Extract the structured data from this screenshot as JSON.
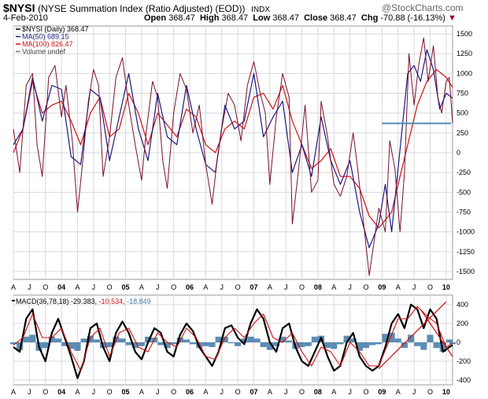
{
  "header": {
    "symbol": "$NYSI",
    "description": "(NYSE Summation Index (Ratio Adjusted) (EOD))",
    "exchange": "INDX",
    "date": "4-Feb-2010",
    "open_label": "Open",
    "open": "368.47",
    "high_label": "High",
    "high": "368.47",
    "low_label": "Low",
    "low": "368.47",
    "close_label": "Close",
    "close": "368.47",
    "chg_label": "Chg",
    "chg": "-70.88 (-16.13%)",
    "brand": "@StockCharts.com",
    "colors": {
      "down": "#cc0000"
    }
  },
  "legend": {
    "nysi": "$NYSI (Daily) 368.47",
    "ma50": "MA(50) 689.15",
    "ma100": "MA(100) 826.47",
    "volume": "Volume undef"
  },
  "macd_legend": {
    "name": "MACD(36,78,18)",
    "macd": "-29.383,",
    "signal": "-10.534,",
    "hist": "-18.849"
  },
  "chart_data": [
    {
      "type": "line",
      "title": "$NYSI (Daily)",
      "ylim": [
        -1600,
        1600
      ],
      "y_ticks": [
        -1500,
        -1250,
        -1000,
        -750,
        -500,
        -250,
        0,
        250,
        500,
        750,
        1000,
        1250,
        1500
      ],
      "x_tick_labels": [
        "A",
        "J",
        "O",
        "04",
        "A",
        "J",
        "O",
        "05",
        "A",
        "J",
        "O",
        "06",
        "A",
        "J",
        "O",
        "07",
        "A",
        "J",
        "O",
        "08",
        "A",
        "J",
        "O",
        "09",
        "A",
        "J",
        "O",
        "10"
      ],
      "x_tick_bold": [
        "04",
        "05",
        "06",
        "07",
        "08",
        "09",
        "10"
      ],
      "x_range": [
        2003.25,
        2010.1
      ],
      "colors": {
        "price": "#7a0f2e",
        "ma50": "#1a1a80",
        "ma100": "#cc1111",
        "hline": "#4a8fb3",
        "grid": "#d8d8d8"
      },
      "horizontal_line": 370,
      "series": [
        {
          "name": "$NYSI",
          "x": [
            2003.25,
            2003.35,
            2003.45,
            2003.55,
            2003.62,
            2003.7,
            2003.8,
            2003.9,
            2004.0,
            2004.07,
            2004.17,
            2004.25,
            2004.32,
            2004.42,
            2004.5,
            2004.58,
            2004.65,
            2004.75,
            2004.85,
            2004.95,
            2005.05,
            2005.15,
            2005.25,
            2005.32,
            2005.42,
            2005.5,
            2005.58,
            2005.65,
            2005.75,
            2005.85,
            2005.95,
            2006.05,
            2006.15,
            2006.25,
            2006.35,
            2006.42,
            2006.5,
            2006.6,
            2006.7,
            2006.8,
            2006.9,
            2007.0,
            2007.1,
            2007.18,
            2007.25,
            2007.35,
            2007.45,
            2007.55,
            2007.6,
            2007.7,
            2007.8,
            2007.9,
            2008.0,
            2008.05,
            2008.15,
            2008.25,
            2008.35,
            2008.45,
            2008.55,
            2008.62,
            2008.7,
            2008.8,
            2008.88,
            2008.95,
            2009.05,
            2009.12,
            2009.2,
            2009.28,
            2009.35,
            2009.42,
            2009.5,
            2009.57,
            2009.65,
            2009.72,
            2009.8,
            2009.87,
            2009.93,
            2010.0,
            2010.05,
            2010.1
          ],
          "values": [
            300,
            -250,
            850,
            1000,
            100,
            -300,
            950,
            1100,
            450,
            850,
            150,
            -750,
            -200,
            650,
            1050,
            850,
            -300,
            200,
            950,
            1200,
            600,
            100,
            -350,
            250,
            900,
            700,
            -100,
            -450,
            500,
            1000,
            800,
            250,
            600,
            -150,
            -650,
            -150,
            300,
            750,
            600,
            150,
            850,
            1150,
            750,
            500,
            -400,
            450,
            1000,
            700,
            -900,
            -200,
            600,
            -500,
            -350,
            650,
            200,
            -400,
            -550,
            -300,
            250,
            -200,
            -800,
            -1550,
            -1100,
            -700,
            -1000,
            150,
            -200,
            -1000,
            -250,
            1250,
            600,
            1100,
            1450,
            900,
            1350,
            700,
            500,
            900,
            950,
            368
          ]
        },
        {
          "name": "MA(50)",
          "x": [
            2003.25,
            2003.4,
            2003.55,
            2003.7,
            2003.85,
            2004.0,
            2004.15,
            2004.3,
            2004.45,
            2004.6,
            2004.75,
            2004.9,
            2005.05,
            2005.2,
            2005.35,
            2005.5,
            2005.65,
            2005.8,
            2005.95,
            2006.1,
            2006.25,
            2006.4,
            2006.55,
            2006.7,
            2006.85,
            2007.0,
            2007.15,
            2007.3,
            2007.45,
            2007.6,
            2007.75,
            2007.9,
            2008.05,
            2008.2,
            2008.35,
            2008.5,
            2008.65,
            2008.8,
            2008.95,
            2009.05,
            2009.15,
            2009.25,
            2009.4,
            2009.5,
            2009.6,
            2009.7,
            2009.8,
            2009.9,
            2010.0,
            2010.1
          ],
          "values": [
            100,
            300,
            950,
            400,
            850,
            800,
            -50,
            -150,
            800,
            700,
            -100,
            450,
            1000,
            300,
            -100,
            750,
            200,
            100,
            850,
            300,
            -150,
            -250,
            600,
            300,
            400,
            1000,
            200,
            450,
            650,
            -250,
            100,
            -300,
            450,
            -100,
            -400,
            -100,
            -750,
            -1200,
            -900,
            -400,
            -1000,
            -200,
            1000,
            1100,
            900,
            1300,
            1050,
            550,
            750,
            689
          ]
        },
        {
          "name": "MA(100)",
          "x": [
            2003.25,
            2003.4,
            2003.55,
            2003.7,
            2003.85,
            2004.0,
            2004.15,
            2004.3,
            2004.45,
            2004.6,
            2004.75,
            2004.9,
            2005.05,
            2005.2,
            2005.35,
            2005.5,
            2005.65,
            2005.8,
            2005.95,
            2006.1,
            2006.25,
            2006.4,
            2006.55,
            2006.7,
            2006.85,
            2007.0,
            2007.15,
            2007.3,
            2007.45,
            2007.6,
            2007.75,
            2007.9,
            2008.05,
            2008.2,
            2008.35,
            2008.5,
            2008.65,
            2008.8,
            2008.95,
            2009.05,
            2009.15,
            2009.25,
            2009.4,
            2009.55,
            2009.7,
            2009.85,
            2010.0,
            2010.1
          ],
          "values": [
            0,
            300,
            900,
            500,
            600,
            650,
            400,
            100,
            500,
            700,
            200,
            300,
            750,
            500,
            100,
            500,
            350,
            200,
            550,
            450,
            100,
            0,
            300,
            400,
            300,
            700,
            750,
            550,
            850,
            400,
            100,
            -200,
            -100,
            50,
            -300,
            -300,
            -450,
            -800,
            -950,
            -850,
            -750,
            -400,
            100,
            600,
            900,
            1050,
            950,
            826
          ]
        }
      ]
    },
    {
      "type": "line",
      "title": "MACD(36,78,18)",
      "ylim": [
        -450,
        500
      ],
      "y_ticks": [
        -400,
        -200,
        0,
        200,
        400
      ],
      "x_range": [
        2003.25,
        2010.1
      ],
      "colors": {
        "macd": "#000000",
        "signal": "#cc1111",
        "hist": "#3f78a8",
        "trend": "#cc1111"
      },
      "trend_lines": [
        {
          "x": [
            2008.95,
            2010.0
          ],
          "values": [
            -280,
            430
          ]
        },
        {
          "x": [
            2009.6,
            2010.1
          ],
          "values": [
            350,
            -150
          ]
        }
      ],
      "series": [
        {
          "name": "MACD",
          "x": [
            2003.25,
            2003.35,
            2003.45,
            2003.55,
            2003.65,
            2003.75,
            2003.85,
            2003.95,
            2004.05,
            2004.15,
            2004.25,
            2004.35,
            2004.45,
            2004.55,
            2004.65,
            2004.75,
            2004.85,
            2004.95,
            2005.05,
            2005.15,
            2005.25,
            2005.35,
            2005.45,
            2005.55,
            2005.65,
            2005.75,
            2005.85,
            2005.95,
            2006.05,
            2006.15,
            2006.25,
            2006.35,
            2006.45,
            2006.55,
            2006.65,
            2006.75,
            2006.85,
            2006.95,
            2007.05,
            2007.15,
            2007.25,
            2007.35,
            2007.45,
            2007.55,
            2007.65,
            2007.75,
            2007.85,
            2007.95,
            2008.05,
            2008.15,
            2008.25,
            2008.35,
            2008.45,
            2008.55,
            2008.65,
            2008.75,
            2008.85,
            2008.95,
            2009.05,
            2009.15,
            2009.25,
            2009.35,
            2009.45,
            2009.55,
            2009.65,
            2009.75,
            2009.85,
            2009.95,
            2010.05,
            2010.1
          ],
          "values": [
            -50,
            -100,
            250,
            350,
            -50,
            -200,
            100,
            250,
            50,
            -150,
            -380,
            -200,
            150,
            200,
            -50,
            -200,
            100,
            220,
            100,
            -100,
            -180,
            0,
            150,
            100,
            -100,
            -150,
            80,
            200,
            120,
            -50,
            -150,
            -250,
            -100,
            150,
            180,
            50,
            -20,
            200,
            350,
            250,
            0,
            -100,
            150,
            200,
            -50,
            -200,
            -250,
            -100,
            50,
            -150,
            -300,
            -250,
            0,
            100,
            -150,
            -250,
            -300,
            -250,
            -50,
            200,
            300,
            150,
            400,
            350,
            150,
            350,
            250,
            -100,
            -50,
            -30
          ]
        },
        {
          "name": "Signal",
          "x": [
            2003.25,
            2003.4,
            2003.55,
            2003.7,
            2003.85,
            2004.0,
            2004.15,
            2004.3,
            2004.45,
            2004.6,
            2004.75,
            2004.9,
            2005.05,
            2005.2,
            2005.35,
            2005.5,
            2005.65,
            2005.8,
            2005.95,
            2006.1,
            2006.25,
            2006.4,
            2006.55,
            2006.7,
            2006.85,
            2007.0,
            2007.15,
            2007.3,
            2007.45,
            2007.6,
            2007.75,
            2007.9,
            2008.05,
            2008.2,
            2008.35,
            2008.5,
            2008.65,
            2008.8,
            2008.95,
            2009.1,
            2009.25,
            2009.4,
            2009.55,
            2009.7,
            2009.85,
            2010.0,
            2010.1
          ],
          "values": [
            -30,
            50,
            300,
            50,
            50,
            150,
            -100,
            -300,
            50,
            150,
            -150,
            100,
            150,
            -50,
            -100,
            100,
            0,
            -50,
            150,
            50,
            -150,
            -180,
            50,
            150,
            50,
            200,
            300,
            50,
            0,
            100,
            -100,
            -250,
            -50,
            -100,
            -250,
            0,
            -100,
            -250,
            -250,
            0,
            250,
            250,
            380,
            280,
            200,
            -50,
            -10
          ]
        },
        {
          "name": "Histogram",
          "x": [
            2003.25,
            2003.35,
            2003.45,
            2003.55,
            2003.65,
            2003.75,
            2003.85,
            2003.95,
            2004.05,
            2004.15,
            2004.25,
            2004.35,
            2004.45,
            2004.55,
            2004.65,
            2004.75,
            2004.85,
            2004.95,
            2005.05,
            2005.15,
            2005.25,
            2005.35,
            2005.45,
            2005.55,
            2005.65,
            2005.75,
            2005.85,
            2005.95,
            2006.05,
            2006.15,
            2006.25,
            2006.35,
            2006.45,
            2006.55,
            2006.65,
            2006.75,
            2006.85,
            2006.95,
            2007.05,
            2007.15,
            2007.25,
            2007.35,
            2007.45,
            2007.55,
            2007.65,
            2007.75,
            2007.85,
            2007.95,
            2008.05,
            2008.15,
            2008.25,
            2008.35,
            2008.45,
            2008.55,
            2008.65,
            2008.75,
            2008.85,
            2008.95,
            2009.05,
            2009.15,
            2009.25,
            2009.35,
            2009.45,
            2009.55,
            2009.65,
            2009.75,
            2009.85,
            2009.95,
            2010.05,
            2010.1
          ],
          "values": [
            -20,
            -80,
            60,
            80,
            -90,
            -60,
            60,
            40,
            -40,
            -70,
            -90,
            40,
            70,
            30,
            -60,
            -50,
            60,
            40,
            -30,
            -60,
            -40,
            60,
            50,
            -30,
            -60,
            -20,
            50,
            30,
            -20,
            -60,
            -40,
            -50,
            60,
            60,
            -10,
            -40,
            40,
            60,
            40,
            -50,
            -80,
            -40,
            60,
            20,
            -70,
            -50,
            -40,
            60,
            70,
            -60,
            -70,
            -20,
            70,
            40,
            -90,
            -60,
            -30,
            -20,
            90,
            100,
            40,
            -60,
            80,
            -40,
            -80,
            80,
            -60,
            -100,
            30,
            -19
          ]
        }
      ]
    }
  ]
}
